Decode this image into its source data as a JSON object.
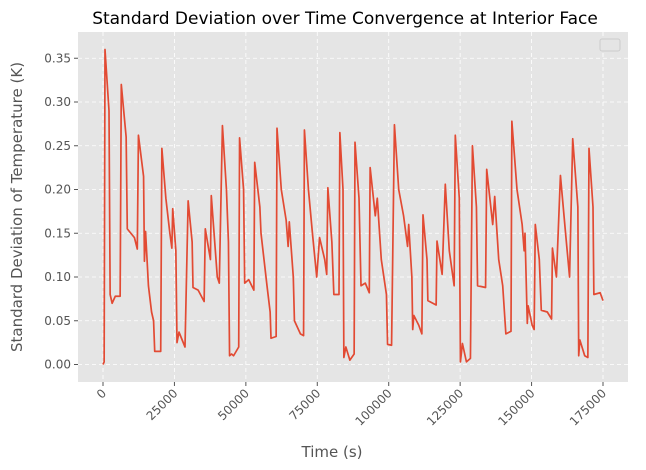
{
  "chart_data": {
    "type": "line",
    "title": "Standard Deviation over Time Convergence at Interior Face",
    "xlabel": "Time (s)",
    "ylabel": "Standard Deviation of Temperature (K)",
    "color": "#e24a33",
    "grid": true,
    "xlim": [
      -8750,
      183750
    ],
    "ylim": [
      -0.02,
      0.38
    ],
    "xticks": [
      0,
      25000,
      50000,
      75000,
      100000,
      125000,
      150000,
      175000
    ],
    "yticks": [
      {
        "value": 0,
        "label": "0.00"
      },
      {
        "value": 0.05,
        "label": "0.05"
      },
      {
        "value": 0.1,
        "label": "0.10"
      },
      {
        "value": 0.15,
        "label": "0.15"
      },
      {
        "value": 0.2,
        "label": "0.20"
      },
      {
        "value": 0.25,
        "label": "0.25"
      },
      {
        "value": 0.3,
        "label": "0.30"
      },
      {
        "value": 0.35,
        "label": "0.35"
      }
    ],
    "x": [
      0,
      400,
      700,
      2100,
      2500,
      3200,
      4300,
      6000,
      6400,
      8100,
      8500,
      11000,
      12000,
      12400,
      14200,
      14500,
      14900,
      15900,
      17000,
      17700,
      18100,
      20200,
      20600,
      22000,
      23400,
      24100,
      24400,
      25500,
      25900,
      26600,
      28700,
      29800,
      31200,
      31500,
      33300,
      35400,
      35800,
      37600,
      37900,
      40000,
      40700,
      41800,
      43200,
      43900,
      44300,
      45000,
      45700,
      47500,
      47800,
      49200,
      49600,
      51000,
      52800,
      53100,
      54900,
      55300,
      57400,
      58500,
      58800,
      60600,
      60900,
      62400,
      64100,
      64800,
      65200,
      66600,
      67000,
      69100,
      70200,
      70500,
      71900,
      73300,
      74800,
      75800,
      77600,
      78300,
      78700,
      80100,
      80800,
      82600,
      82900,
      84000,
      84300,
      85000,
      86400,
      87900,
      88200,
      89600,
      90300,
      91800,
      93200,
      93500,
      95300,
      96000,
      97400,
      99200,
      99600,
      101000,
      102000,
      103500,
      105200,
      106600,
      107000,
      108100,
      108400,
      108800,
      110500,
      111600,
      112000,
      113400,
      113700,
      116600,
      116900,
      118700,
      119800,
      121200,
      122900,
      123300,
      124700,
      125100,
      125800,
      127200,
      128600,
      129300,
      130700,
      131100,
      133900,
      134300,
      136400,
      137100,
      138500,
      139900,
      141000,
      142800,
      143100,
      144900,
      146700,
      147400,
      147700,
      148500,
      148800,
      150200,
      150900,
      151300,
      152700,
      153400,
      155500,
      157000,
      157300,
      158700,
      160100,
      161900,
      163300,
      164400,
      166200,
      166500,
      166900,
      168600,
      169700,
      170100,
      171500,
      171800,
      174000,
      175000
    ],
    "values": [
      0,
      0.003,
      0.36,
      0.29,
      0.08,
      0.07,
      0.078,
      0.078,
      0.32,
      0.26,
      0.155,
      0.145,
      0.132,
      0.262,
      0.215,
      0.118,
      0.152,
      0.09,
      0.06,
      0.05,
      0.015,
      0.015,
      0.247,
      0.19,
      0.15,
      0.133,
      0.178,
      0.13,
      0.025,
      0.037,
      0.02,
      0.187,
      0.14,
      0.088,
      0.085,
      0.072,
      0.155,
      0.12,
      0.193,
      0.1,
      0.093,
      0.273,
      0.2,
      0.14,
      0.01,
      0.012,
      0.01,
      0.02,
      0.259,
      0.2,
      0.093,
      0.097,
      0.085,
      0.231,
      0.18,
      0.15,
      0.09,
      0.06,
      0.03,
      0.032,
      0.27,
      0.2,
      0.165,
      0.135,
      0.163,
      0.1,
      0.05,
      0.035,
      0.033,
      0.268,
      0.2,
      0.15,
      0.1,
      0.145,
      0.12,
      0.103,
      0.202,
      0.14,
      0.08,
      0.08,
      0.265,
      0.2,
      0.008,
      0.02,
      0.005,
      0.012,
      0.254,
      0.19,
      0.09,
      0.093,
      0.082,
      0.225,
      0.17,
      0.19,
      0.12,
      0.08,
      0.023,
      0.022,
      0.274,
      0.2,
      0.17,
      0.135,
      0.16,
      0.1,
      0.04,
      0.056,
      0.045,
      0.035,
      0.171,
      0.12,
      0.073,
      0.068,
      0.141,
      0.103,
      0.206,
      0.13,
      0.09,
      0.262,
      0.19,
      0.003,
      0.024,
      0.003,
      0.007,
      0.25,
      0.18,
      0.09,
      0.088,
      0.223,
      0.16,
      0.192,
      0.12,
      0.09,
      0.035,
      0.038,
      0.278,
      0.2,
      0.16,
      0.13,
      0.15,
      0.047,
      0.067,
      0.045,
      0.04,
      0.16,
      0.12,
      0.062,
      0.06,
      0.052,
      0.133,
      0.1,
      0.216,
      0.15,
      0.1,
      0.258,
      0.18,
      0.01,
      0.028,
      0.01,
      0.008,
      0.247,
      0.18,
      0.08,
      0.082,
      0.073
    ]
  }
}
